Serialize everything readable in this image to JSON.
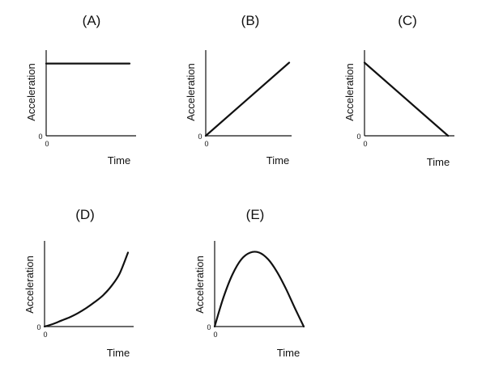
{
  "colors": {
    "line": "#111111",
    "background": "#ffffff"
  },
  "chart_data": [
    {
      "type": "line",
      "title": "(A)",
      "xlabel": "Time",
      "ylabel": "Acceleration",
      "x_origin_label": "0",
      "y_origin_label": "0",
      "xlim": [
        0,
        1
      ],
      "ylim": [
        0,
        1
      ],
      "series": [
        {
          "x": [
            0,
            1
          ],
          "y": [
            0.86,
            0.86
          ]
        }
      ]
    },
    {
      "type": "line",
      "title": "(B)",
      "xlabel": "Time",
      "ylabel": "Acceleration",
      "x_origin_label": "0",
      "y_origin_label": "0",
      "xlim": [
        0,
        1
      ],
      "ylim": [
        0,
        1
      ],
      "series": [
        {
          "x": [
            0,
            1
          ],
          "y": [
            0,
            0.87
          ]
        }
      ]
    },
    {
      "type": "line",
      "title": "(C)",
      "xlabel": "Time",
      "ylabel": "Acceleration",
      "x_origin_label": "0",
      "y_origin_label": "0",
      "xlim": [
        0,
        1
      ],
      "ylim": [
        0,
        1
      ],
      "series": [
        {
          "x": [
            0,
            0.93
          ],
          "y": [
            0.87,
            0
          ]
        }
      ]
    },
    {
      "type": "line",
      "title": "(D)",
      "xlabel": "Time",
      "ylabel": "Acceleration",
      "x_origin_label": "0",
      "y_origin_label": "0",
      "xlim": [
        0,
        1
      ],
      "ylim": [
        0,
        1
      ],
      "series": [
        {
          "x": [
            0,
            0.1,
            0.2,
            0.3,
            0.4,
            0.5,
            0.6,
            0.7,
            0.8,
            0.9,
            1.0
          ],
          "y": [
            0,
            0.03,
            0.07,
            0.11,
            0.16,
            0.22,
            0.29,
            0.37,
            0.48,
            0.63,
            0.88
          ]
        }
      ]
    },
    {
      "type": "line",
      "title": "(E)",
      "xlabel": "Time",
      "ylabel": "Acceleration",
      "x_origin_label": "0",
      "y_origin_label": "0",
      "xlim": [
        0,
        1
      ],
      "ylim": [
        0,
        1
      ],
      "series": [
        {
          "x": [
            0,
            0.1,
            0.2,
            0.3,
            0.4,
            0.5,
            0.6,
            0.7,
            0.8,
            0.9,
            1.0
          ],
          "y": [
            0,
            0.35,
            0.62,
            0.8,
            0.88,
            0.88,
            0.8,
            0.65,
            0.45,
            0.22,
            0
          ]
        }
      ]
    }
  ]
}
